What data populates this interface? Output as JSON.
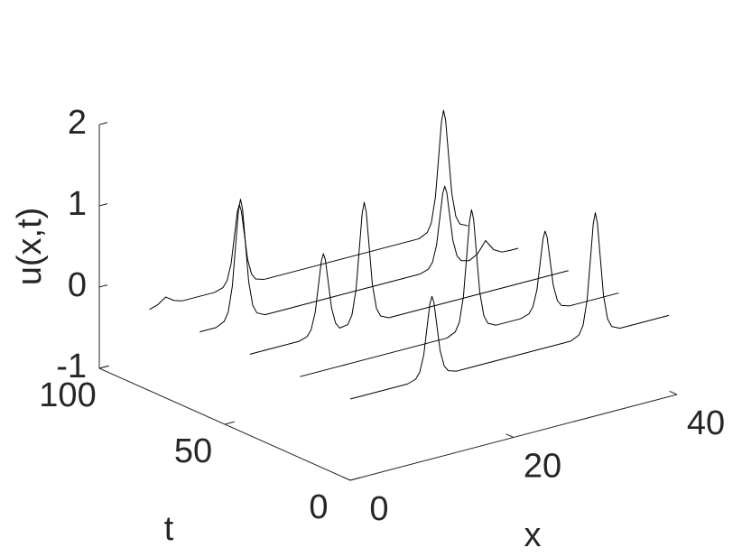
{
  "chart_data": {
    "type": "line3d",
    "xlabel": "x",
    "ylabel": "t",
    "zlabel": "u(x,t)",
    "xlim": [
      0,
      40
    ],
    "ylim": [
      0,
      100
    ],
    "zlim": [
      -1,
      2
    ],
    "xticks": [
      0,
      20,
      40
    ],
    "yticks": [
      0,
      50,
      100
    ],
    "zticks": [
      -1,
      0,
      1,
      2
    ],
    "color": "#000000",
    "series": [
      {
        "t": 80,
        "x": [
          0,
          1,
          2,
          3,
          4,
          5,
          6,
          7,
          8,
          9,
          9.5,
          10,
          10.5,
          10.75,
          11,
          11.25,
          11.5,
          12,
          12.5,
          13,
          14,
          15,
          16,
          17,
          18,
          19,
          20,
          21,
          22,
          23,
          24,
          25,
          26,
          27,
          28,
          29,
          30,
          31,
          32,
          33,
          34,
          34.5,
          35,
          35.5,
          35.75,
          36,
          36.25,
          36.5,
          37,
          37.5,
          38,
          39
        ],
        "values": [
          0,
          0.031,
          0.1,
          0.031,
          0,
          0,
          0,
          0,
          0,
          0.032,
          0.104,
          0.305,
          0.712,
          0.915,
          1,
          0.915,
          0.712,
          0.305,
          0.104,
          0.032,
          0,
          0,
          0,
          0,
          0,
          0,
          0,
          0,
          0,
          0,
          0,
          0,
          0,
          0,
          0,
          0,
          0,
          0,
          0,
          0,
          0.049,
          0.155,
          0.458,
          1.067,
          1.373,
          1.5,
          1.373,
          1.067,
          0.458,
          0.155,
          0.049,
          0
        ]
      },
      {
        "t": 60,
        "x": [
          0,
          1,
          2,
          3,
          3.5,
          4,
          4.5,
          4.75,
          5,
          5.25,
          5.5,
          6,
          6.5,
          7,
          8,
          9,
          10,
          11,
          12,
          13,
          14,
          15,
          16,
          17,
          18,
          19,
          20,
          21,
          22,
          23,
          24,
          25,
          26,
          27,
          28,
          28.5,
          29,
          29.5,
          29.75,
          30,
          30.25,
          30.5,
          31,
          31.5,
          32,
          33,
          34,
          35,
          36,
          37,
          38,
          39
        ],
        "values": [
          0,
          0,
          0,
          0.049,
          0.155,
          0.458,
          1.067,
          1.373,
          1.5,
          1.373,
          1.067,
          0.458,
          0.155,
          0.049,
          0,
          0,
          0,
          0,
          0,
          0,
          0,
          0,
          0,
          0,
          0,
          0,
          0,
          0,
          0,
          0,
          0,
          0,
          0,
          0,
          0.032,
          0.104,
          0.305,
          0.712,
          0.915,
          1,
          0.915,
          0.712,
          0.305,
          0.104,
          0.032,
          0.006,
          0.061,
          0.2,
          0.061,
          0.006,
          0,
          0
        ]
      },
      {
        "t": 40,
        "x": [
          0,
          1,
          2,
          3,
          4,
          5,
          6,
          7,
          7.5,
          8,
          8.5,
          8.75,
          9,
          9.25,
          9.5,
          10,
          10.5,
          11,
          12,
          12.5,
          13,
          13.5,
          13.75,
          14,
          14.25,
          14.5,
          15,
          15.5,
          16,
          17,
          18,
          19,
          20,
          21,
          22,
          23,
          24,
          25,
          26,
          27,
          28,
          29,
          30,
          31,
          32,
          33,
          34,
          35,
          36,
          37,
          38,
          39
        ],
        "values": [
          0,
          0,
          0,
          0,
          0,
          0,
          0,
          0.032,
          0.104,
          0.305,
          0.712,
          0.915,
          1,
          0.915,
          0.712,
          0.305,
          0.104,
          0.032,
          0.049,
          0.155,
          0.458,
          1.067,
          1.373,
          1.5,
          1.373,
          1.067,
          0.458,
          0.155,
          0.049,
          0,
          0,
          0,
          0,
          0,
          0,
          0,
          0,
          0,
          0,
          0,
          0,
          0,
          0,
          0,
          0,
          0,
          0,
          0,
          0,
          0,
          0,
          0
        ]
      },
      {
        "t": 20,
        "x": [
          0,
          1,
          2,
          3,
          4,
          5,
          6,
          7,
          8,
          9,
          10,
          11,
          12,
          13,
          14,
          15,
          16,
          17,
          18,
          19,
          19.5,
          20,
          20.5,
          20.75,
          21,
          21.25,
          21.5,
          22,
          22.5,
          23,
          24,
          25,
          26,
          27,
          28,
          28.5,
          29,
          29.5,
          29.75,
          30,
          30.25,
          30.5,
          31,
          31.5,
          32,
          33,
          34,
          35,
          36,
          37,
          38,
          39
        ],
        "values": [
          0,
          0,
          0,
          0,
          0,
          0,
          0,
          0,
          0,
          0,
          0,
          0,
          0,
          0,
          0,
          0,
          0,
          0,
          0,
          0.049,
          0.155,
          0.458,
          1.067,
          1.373,
          1.5,
          1.373,
          1.067,
          0.458,
          0.155,
          0.049,
          0,
          0,
          0,
          0,
          0.032,
          0.104,
          0.305,
          0.712,
          0.915,
          1,
          0.915,
          0.712,
          0.305,
          0.104,
          0.032,
          0,
          0,
          0,
          0,
          0,
          0,
          0
        ]
      },
      {
        "t": 0,
        "x": [
          0,
          1,
          2,
          3,
          4,
          5,
          6,
          7,
          8,
          8.5,
          9,
          9.5,
          9.75,
          10,
          10.25,
          10.5,
          11,
          11.5,
          12,
          13,
          14,
          15,
          16,
          17,
          18,
          19,
          20,
          21,
          22,
          23,
          24,
          25,
          26,
          27,
          28,
          28.5,
          29,
          29.5,
          29.75,
          30,
          30.25,
          30.5,
          31,
          31.5,
          32,
          33,
          34,
          35,
          36,
          37,
          38,
          39
        ],
        "values": [
          0,
          0,
          0,
          0,
          0,
          0,
          0,
          0,
          0.032,
          0.104,
          0.305,
          0.712,
          0.915,
          1,
          0.915,
          0.712,
          0.305,
          0.104,
          0.032,
          0,
          0,
          0,
          0,
          0,
          0,
          0,
          0,
          0,
          0,
          0,
          0,
          0,
          0,
          0,
          0.049,
          0.155,
          0.458,
          1.067,
          1.373,
          1.5,
          1.373,
          1.067,
          0.458,
          0.155,
          0.049,
          0,
          0,
          0,
          0,
          0,
          0,
          0
        ]
      }
    ]
  }
}
